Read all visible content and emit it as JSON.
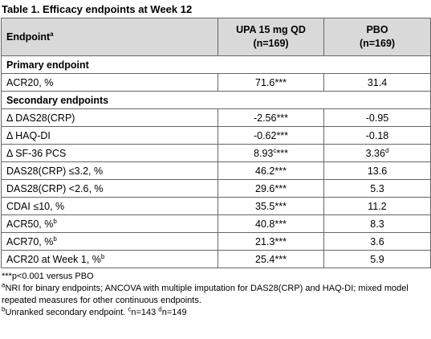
{
  "title": "Table 1. Efficacy endpoints at Week 12",
  "header": [
    {
      "text": "Endpoint",
      "sup": "a"
    },
    {
      "text": "UPA 15 mg QD",
      "subtext": "(n=169)"
    },
    {
      "text": "PBO",
      "subtext": "(n=169)"
    }
  ],
  "rows": [
    {
      "section": "Primary endpoint"
    },
    {
      "cells": [
        {
          "text": "ACR20, %"
        },
        {
          "text": "71.6***"
        },
        {
          "text": "31.4"
        }
      ]
    },
    {
      "section": "Secondary endpoints"
    },
    {
      "cells": [
        {
          "text": "Δ DAS28(CRP)"
        },
        {
          "text": "-2.56***"
        },
        {
          "text": "-0.95"
        }
      ]
    },
    {
      "cells": [
        {
          "text": "Δ HAQ-DI"
        },
        {
          "text": "-0.62***"
        },
        {
          "text": "-0.18"
        }
      ]
    },
    {
      "cells": [
        {
          "text": "Δ SF-36 PCS"
        },
        {
          "text": "8.93",
          "sup": "c",
          "after": "***"
        },
        {
          "text": "3.36",
          "sup": "d"
        }
      ]
    },
    {
      "cells": [
        {
          "text": "DAS28(CRP) ≤3.2, %"
        },
        {
          "text": "46.2***"
        },
        {
          "text": "13.6"
        }
      ]
    },
    {
      "cells": [
        {
          "text": "DAS28(CRP) <2.6, %"
        },
        {
          "text": "29.6***"
        },
        {
          "text": "5.3"
        }
      ]
    },
    {
      "cells": [
        {
          "text": "CDAI ≤10, %"
        },
        {
          "text": "35.5***"
        },
        {
          "text": "11.2"
        }
      ]
    },
    {
      "cells": [
        {
          "text": "ACR50, %",
          "sup": "b"
        },
        {
          "text": "40.8***"
        },
        {
          "text": "8.3"
        }
      ]
    },
    {
      "cells": [
        {
          "text": "ACR70, %",
          "sup": "b"
        },
        {
          "text": "21.3***"
        },
        {
          "text": "3.6"
        }
      ]
    },
    {
      "cells": [
        {
          "text": "ACR20 at Week 1, %",
          "sup": "b"
        },
        {
          "text": "25.4***"
        },
        {
          "text": "5.9"
        }
      ]
    }
  ],
  "footnotes": [
    [
      {
        "text": "***p<0.001 versus PBO"
      }
    ],
    [
      {
        "sup": "a",
        "text": "NRI for binary endpoints; ANCOVA with multiple imputation for DAS28(CRP) and HAQ-DI; mixed model repeated measures for other continuous endpoints."
      }
    ],
    [
      {
        "sup": "b",
        "text": "Unranked secondary endpoint. "
      },
      {
        "sup": "c",
        "text": "n=143 "
      },
      {
        "sup": "d",
        "text": "n=149"
      }
    ]
  ]
}
